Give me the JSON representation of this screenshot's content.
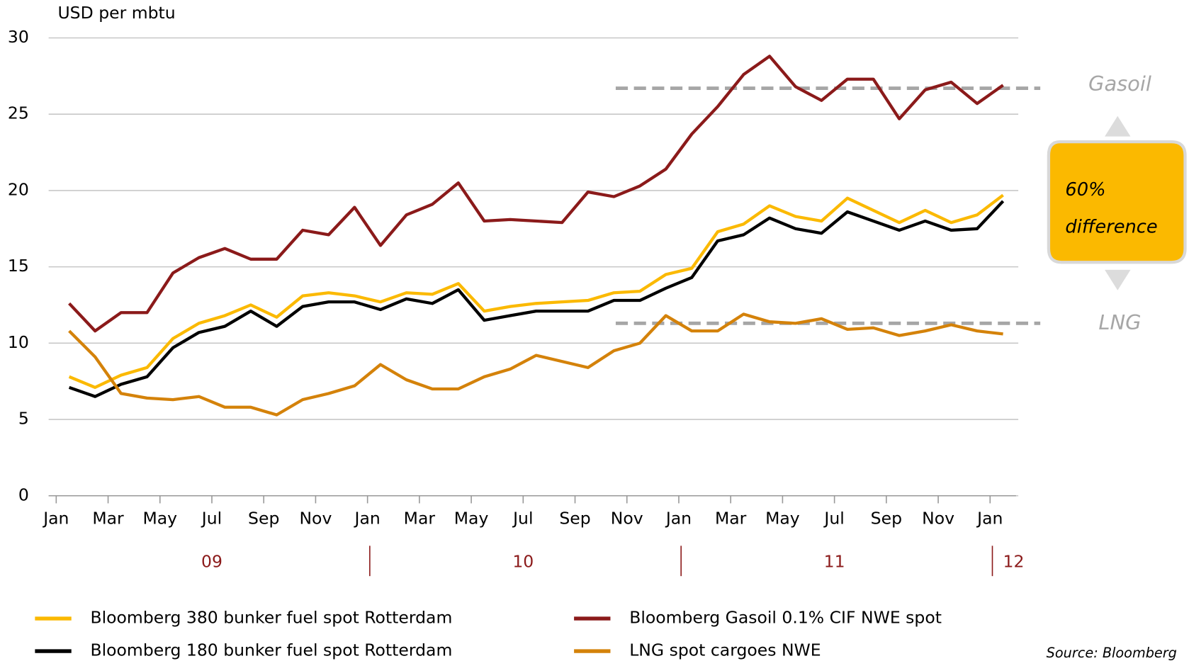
{
  "chart_data": {
    "type": "line",
    "y_axis_label": "USD per mbtu",
    "x": [
      "2009-01",
      "2009-02",
      "2009-03",
      "2009-04",
      "2009-05",
      "2009-06",
      "2009-07",
      "2009-08",
      "2009-09",
      "2009-10",
      "2009-11",
      "2009-12",
      "2010-01",
      "2010-02",
      "2010-03",
      "2010-04",
      "2010-05",
      "2010-06",
      "2010-07",
      "2010-08",
      "2010-09",
      "2010-10",
      "2010-11",
      "2010-12",
      "2011-01",
      "2011-02",
      "2011-03",
      "2011-04",
      "2011-05",
      "2011-06",
      "2011-07",
      "2011-08",
      "2011-09",
      "2011-10",
      "2011-11",
      "2011-12",
      "2012-01"
    ],
    "series": [
      {
        "name": "Bloomberg 380 bunker fuel spot Rotterdam",
        "color": "#fbb900",
        "values": [
          7.8,
          7.1,
          7.9,
          8.4,
          10.3,
          11.3,
          11.8,
          12.5,
          11.7,
          13.1,
          13.3,
          13.1,
          12.7,
          13.3,
          13.2,
          13.9,
          12.1,
          12.4,
          12.6,
          12.7,
          12.8,
          13.3,
          13.4,
          14.5,
          14.9,
          17.3,
          17.8,
          19.0,
          18.3,
          18.0,
          19.5,
          18.7,
          17.9,
          18.7,
          17.9,
          18.4,
          19.7
        ]
      },
      {
        "name": "Bloomberg 180 bunker fuel spot Rotterdam",
        "color": "#000000",
        "values": [
          7.1,
          6.5,
          7.3,
          7.8,
          9.7,
          10.7,
          11.1,
          12.1,
          11.1,
          12.4,
          12.7,
          12.7,
          12.2,
          12.9,
          12.6,
          13.5,
          11.5,
          11.8,
          12.1,
          12.1,
          12.1,
          12.8,
          12.8,
          13.6,
          14.3,
          16.7,
          17.1,
          18.2,
          17.5,
          17.2,
          18.6,
          18.0,
          17.4,
          18.0,
          17.4,
          17.5,
          19.3
        ]
      },
      {
        "name": "Bloomberg Gasoil 0.1% CIF NWE spot",
        "color": "#8b1a1a",
        "values": [
          12.6,
          10.8,
          12.0,
          12.0,
          14.6,
          15.6,
          16.2,
          15.5,
          15.5,
          17.4,
          17.1,
          18.9,
          16.4,
          18.4,
          19.1,
          20.5,
          18.0,
          18.1,
          18.0,
          17.9,
          19.9,
          19.6,
          20.3,
          21.4,
          23.7,
          25.5,
          27.6,
          28.8,
          26.8,
          25.9,
          27.3,
          27.3,
          24.7,
          26.6,
          27.1,
          25.7,
          26.9
        ]
      },
      {
        "name": "LNG spot cargoes NWE",
        "color": "#d4820a",
        "values": [
          10.8,
          9.1,
          6.7,
          6.4,
          6.3,
          6.5,
          5.8,
          5.8,
          5.3,
          6.3,
          6.7,
          7.2,
          8.6,
          7.6,
          7.0,
          7.0,
          7.8,
          8.3,
          9.2,
          8.8,
          8.4,
          9.5,
          10.0,
          11.8,
          10.8,
          10.8,
          11.9,
          11.4,
          11.3,
          11.6,
          10.9,
          11.0,
          10.5,
          10.8,
          11.2,
          10.8,
          10.6
        ]
      }
    ],
    "xlim": [
      "2009-01",
      "2012-02"
    ],
    "xticks": [
      {
        "value": "2009-01",
        "label": "Jan"
      },
      {
        "value": "2009-03",
        "label": "Mar"
      },
      {
        "value": "2009-05",
        "label": "May"
      },
      {
        "value": "2009-07",
        "label": "Jul"
      },
      {
        "value": "2009-09",
        "label": "Sep"
      },
      {
        "value": "2009-11",
        "label": "Nov"
      },
      {
        "value": "2010-01",
        "label": "Jan"
      },
      {
        "value": "2010-03",
        "label": "Mar"
      },
      {
        "value": "2010-05",
        "label": "May"
      },
      {
        "value": "2010-07",
        "label": "Jul"
      },
      {
        "value": "2010-09",
        "label": "Sep"
      },
      {
        "value": "2010-11",
        "label": "Nov"
      },
      {
        "value": "2011-01",
        "label": "Jan"
      },
      {
        "value": "2011-03",
        "label": "Mar"
      },
      {
        "value": "2011-05",
        "label": "May"
      },
      {
        "value": "2011-07",
        "label": "Jul"
      },
      {
        "value": "2011-09",
        "label": "Sep"
      },
      {
        "value": "2011-11",
        "label": "Nov"
      },
      {
        "value": "2012-01",
        "label": "Jan"
      }
    ],
    "year_labels": [
      {
        "value": "2009",
        "label": "09"
      },
      {
        "value": "2010",
        "label": "10"
      },
      {
        "value": "2011",
        "label": "11"
      },
      {
        "value": "2012",
        "label": "12"
      }
    ],
    "ylim": [
      0,
      30
    ],
    "yticks": [
      0,
      5,
      10,
      15,
      20,
      25,
      30
    ],
    "grid": true,
    "reference_lines": [
      {
        "label": "Gasoil",
        "value": 26.7
      },
      {
        "label": "LNG",
        "value": 11.3
      }
    ],
    "annotation_lines": [
      "60%",
      "difference"
    ],
    "source": "Source: Bloomberg"
  }
}
